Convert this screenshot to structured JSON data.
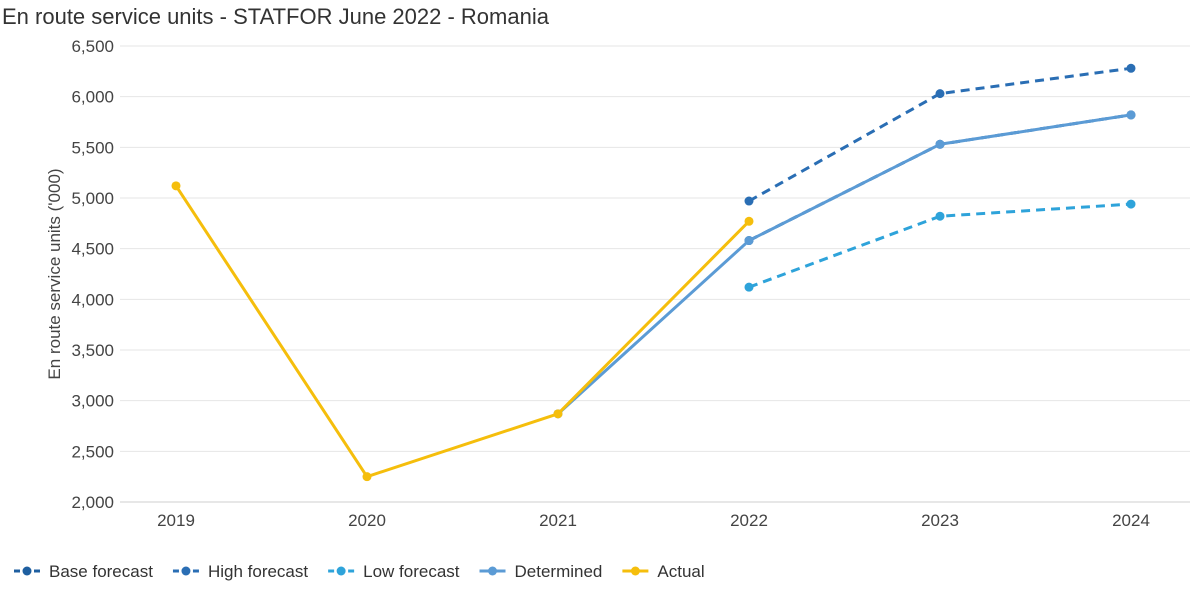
{
  "chart_data": {
    "type": "line",
    "title": "En route service units - STATFOR June 2022 - Romania",
    "xlabel": "",
    "ylabel": "En route service units ('000)",
    "categories": [
      "2019",
      "2020",
      "2021",
      "2022",
      "2023",
      "2024"
    ],
    "ylim": [
      2000,
      6500
    ],
    "yticks": [
      2000,
      2500,
      3000,
      3500,
      4000,
      4500,
      5000,
      5500,
      6000,
      6500
    ],
    "ytick_labels": [
      "2,000",
      "2,500",
      "3,000",
      "3,500",
      "4,000",
      "4,500",
      "5,000",
      "5,500",
      "6,000",
      "6,500"
    ],
    "grid": true,
    "legend_position": "bottom-left",
    "series": [
      {
        "name": "Base forecast",
        "color": "#1f5fa0",
        "dashed": true,
        "values": [
          null,
          null,
          null,
          4580,
          5530,
          5820
        ]
      },
      {
        "name": "High forecast",
        "color": "#2a6eb4",
        "dashed": true,
        "values": [
          null,
          null,
          null,
          4970,
          6030,
          6280
        ]
      },
      {
        "name": "Low forecast",
        "color": "#2ea3da",
        "dashed": true,
        "values": [
          null,
          null,
          null,
          4120,
          4820,
          4940
        ]
      },
      {
        "name": "Determined",
        "color": "#5b9bd5",
        "dashed": false,
        "values": [
          null,
          null,
          2870,
          4580,
          5530,
          5820
        ]
      },
      {
        "name": "Actual",
        "color": "#f5be0c",
        "dashed": false,
        "values": [
          5120,
          2250,
          2870,
          4770,
          null,
          null
        ]
      }
    ]
  }
}
